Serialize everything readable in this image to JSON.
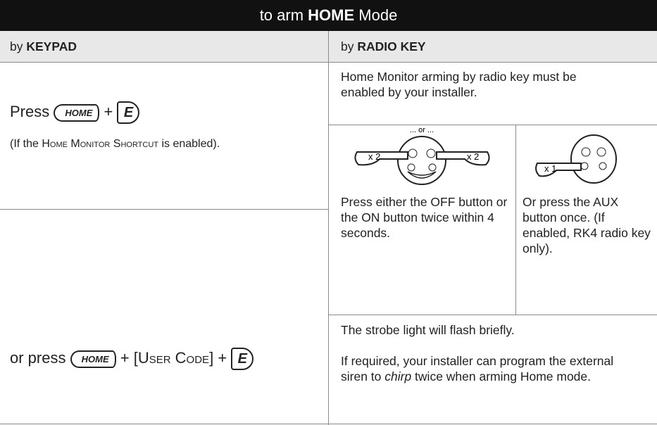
{
  "header": {
    "title": [
      "to arm ",
      "HOME",
      " Mode"
    ]
  },
  "keypad": {
    "heading_prefix": "by ",
    "heading": "KEYPAD",
    "press": "Press",
    "key_home": "HOME",
    "plus": "+",
    "key_e": "E",
    "note_prefix": "(If the ",
    "note_caps": "Home Monitor Shortcut",
    "note_suffix": " is enabled).",
    "or_press": "or press",
    "user_code": "[User Code]"
  },
  "radio": {
    "heading_prefix": "by ",
    "heading": "RADIO KEY",
    "note": "Home Monitor arming by radio key must be enabled by your installer.",
    "figure_left": {
      "caption": "... or ...",
      "left_count": "x 2",
      "right_count": "x 2"
    },
    "figure_right": {
      "count": "x 1"
    },
    "step_left": "Press either the OFF button or the ON button twice within 4 seconds.",
    "step_right": "Or press the AUX button once. (If enabled, RK4 radio key only).",
    "result": "The strobe light will flash briefly.",
    "option": [
      "If required, your installer can program the external siren to ",
      "chirp",
      " twice when arming Home mode."
    ]
  }
}
